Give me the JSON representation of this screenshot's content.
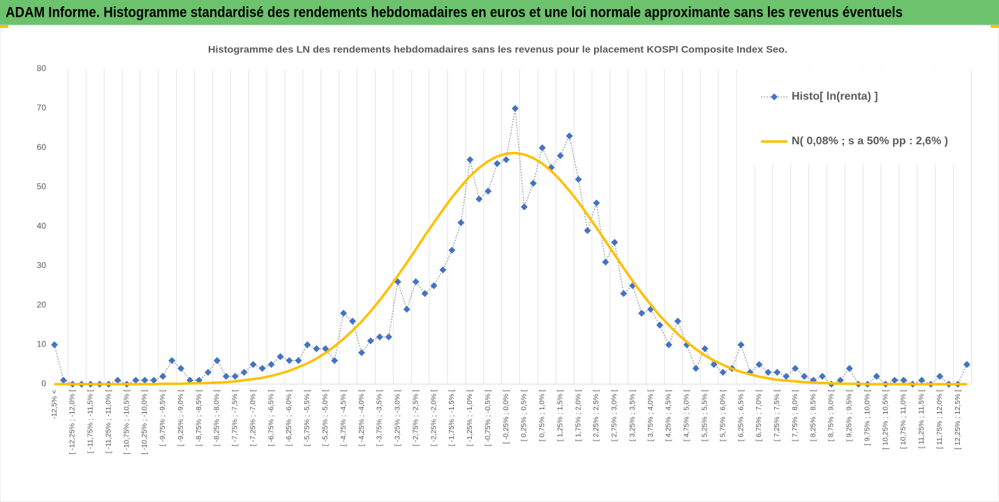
{
  "header": {
    "title": "ADAM Informe. Histogramme standardisé des rendements hebdomadaires en euros et une loi normale approximante sans les revenus éventuels"
  },
  "chart_data": {
    "type": "line",
    "title": "Histogramme des LN des rendements hebdomadaires sans les revenus pour le placement KOSPI Composite Index Seo.",
    "categories": [
      "-12,5% <",
      null,
      "[ -12,25% ; -12,0% [",
      null,
      "[ -11,75% ; -11,5% [",
      null,
      "[ -11,25% ; -11,0% [",
      null,
      "[ -10,75% ; -10,5% [",
      null,
      "[ -10,25% ; -10,0% [",
      null,
      "[ -9,75% ; -9,5% [",
      null,
      "[ -9,25% ; -9,0% [",
      null,
      "[ -8,75% ; -8,5% [",
      null,
      "[ -8,25% ; -8,0% [",
      null,
      "[ -7,75% ; -7,5% [",
      null,
      "[ -7,25% ; -7,0% [",
      null,
      "[ -6,75% ; -6,5% [",
      null,
      "[ -6,25% ; -6,0% [",
      null,
      "[ -5,75% ; -5,5% [",
      null,
      "[ -5,25% ; -5,0% [",
      null,
      "[ -4,75% ; -4,5% [",
      null,
      "[ -4,25% ; -4,0% [",
      null,
      "[ -3,75% ; -3,5% [",
      null,
      "[ -3,25% ; -3,0% [",
      null,
      "[ -2,75% ; -2,5% [",
      null,
      "[ -2,25% ; -2,0% [",
      null,
      "[ -1,75% ; -1,5% [",
      null,
      "[ -1,25% ; -1,0% [",
      null,
      "[ -0,75% ; -0,5% [",
      null,
      "[ -0,25% ; 0,0% [",
      null,
      "[ 0,25% ; 0,5% [",
      null,
      "[ 0,75% ; 1,0% [",
      null,
      "[ 1,25% ; 1,5% [",
      null,
      "[ 1,75% ; 2,0% [",
      null,
      "[ 2,25% ; 2,5% [",
      null,
      "[ 2,75% ; 3,0% [",
      null,
      "[ 3,25% ; 3,5% [",
      null,
      "[ 3,75% ; 4,0% [",
      null,
      "[ 4,25% ; 4,5% [",
      null,
      "[ 4,75% ; 5,0% [",
      null,
      "[ 5,25% ; 5,5% [",
      null,
      "[ 5,75% ; 6,0% [",
      null,
      "[ 6,25% ; 6,5% [",
      null,
      "[ 6,75% ; 7,0% [",
      null,
      "[ 7,25% ; 7,5% [",
      null,
      "[ 7,75% ; 8,0% [",
      null,
      "[ 8,25% ; 8,5% [",
      null,
      "[ 8,75% ; 9,0% [",
      null,
      "[ 9,25% ; 9,5% [",
      null,
      "[ 9,75% ; 10,0% [",
      null,
      "[ 10,25% ; 10,5% [",
      null,
      "[ 10,75% ; 11,0% [",
      null,
      "[ 11,25% ; 11,5% [",
      null,
      "[ 11,75% ; 12,0% [",
      null,
      "[ 12,25% ; 12,5% [",
      null
    ],
    "series": [
      {
        "name": "Histo[ ln(renta) ]",
        "color": "#4472c4",
        "line_color": "#a6a6a6",
        "marker": "diamond",
        "values": [
          10,
          1,
          0,
          0,
          0,
          0,
          0,
          1,
          0,
          1,
          1,
          1,
          2,
          6,
          4,
          1,
          1,
          3,
          6,
          2,
          2,
          3,
          5,
          4,
          5,
          7,
          6,
          6,
          10,
          9,
          9,
          6,
          18,
          16,
          8,
          11,
          12,
          12,
          26,
          19,
          26,
          23,
          25,
          29,
          34,
          41,
          57,
          47,
          49,
          56,
          57,
          70,
          45,
          51,
          60,
          55,
          58,
          63,
          52,
          39,
          46,
          31,
          36,
          23,
          25,
          18,
          19,
          15,
          10,
          16,
          10,
          4,
          9,
          5,
          3,
          4,
          10,
          3,
          5,
          3,
          3,
          2,
          4,
          2,
          1,
          2,
          0,
          1,
          4,
          0,
          0,
          2,
          0,
          1,
          1,
          0,
          1,
          0,
          2,
          0,
          0,
          5
        ]
      },
      {
        "name": "N( 0,08% ; s a 50% pp : 2,6% )",
        "color": "#ffc000",
        "marker": "none",
        "values": [
          0,
          0,
          0,
          0,
          0,
          0,
          0,
          0,
          0,
          0,
          0,
          0,
          0.1,
          0.1,
          0.1,
          0.2,
          0.2,
          0.3,
          0.4,
          0.5,
          0.7,
          1.0,
          1.3,
          1.6,
          2.1,
          2.7,
          3.4,
          4.3,
          5.3,
          6.5,
          7.9,
          9.6,
          11.5,
          13.6,
          15.9,
          18.5,
          21.3,
          24.3,
          27.5,
          30.8,
          34.2,
          37.7,
          41.0,
          44.3,
          47.4,
          50.2,
          52.8,
          54.9,
          56.6,
          57.8,
          58.5,
          58.7,
          58.3,
          57.4,
          56.0,
          54.1,
          51.8,
          49.1,
          46.2,
          43.0,
          39.7,
          36.3,
          32.9,
          29.5,
          26.2,
          23.1,
          20.2,
          17.4,
          15.0,
          12.7,
          10.7,
          8.9,
          7.3,
          6.0,
          4.9,
          3.9,
          3.1,
          2.5,
          1.9,
          1.5,
          1.1,
          0.9,
          0.7,
          0.5,
          0.4,
          0.3,
          0.2,
          0.1,
          0.1,
          0.1,
          0,
          0,
          0,
          0,
          0,
          0,
          0,
          0,
          0,
          0,
          0,
          0
        ]
      }
    ],
    "ylim": [
      0,
      80
    ],
    "yticks": [
      0,
      10,
      20,
      30,
      40,
      50,
      60,
      70,
      80
    ],
    "grid": "x",
    "legend": "upper right"
  }
}
